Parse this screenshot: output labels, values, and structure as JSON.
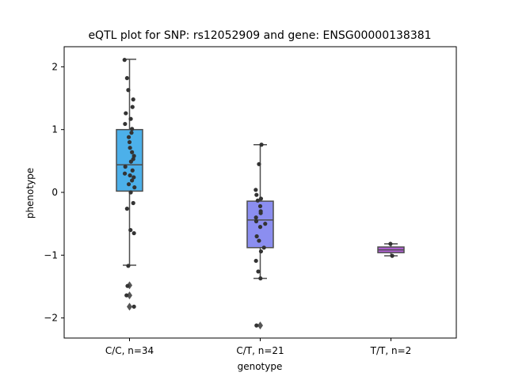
{
  "chart_data": {
    "type": "box",
    "title": "eQTL plot for SNP: rs12052909 and gene: ENSG00000138381",
    "xlabel": "genotype",
    "ylabel": "phenotype",
    "ylim": [
      -2.32,
      2.32
    ],
    "yticks": [
      -2,
      -1,
      0,
      1,
      2
    ],
    "yticklabels": [
      "−2",
      "−1",
      "0",
      "1",
      "2"
    ],
    "grid": false,
    "legend": "none",
    "colors": {
      "box_line": "#4d4d4d",
      "points": "#333333",
      "outliers": "#555555",
      "axes": "#000000"
    },
    "categories": [
      "C/C, n=34",
      "C/T, n=21",
      "T/T, n=2"
    ],
    "boxes": [
      {
        "category": "C/C, n=34",
        "color": "#4cb0ea",
        "q1": 0.02,
        "median": 0.44,
        "q3": 1.0,
        "whisker_low": -1.16,
        "whisker_high": 2.12,
        "outliers": [
          -1.48,
          -1.64,
          -1.82
        ],
        "points": [
          [
            -0.2,
            2.11
          ],
          [
            -0.1,
            1.82
          ],
          [
            -0.05,
            1.63
          ],
          [
            0.15,
            1.48
          ],
          [
            0.12,
            1.36
          ],
          [
            -0.15,
            1.26
          ],
          [
            0.05,
            1.17
          ],
          [
            -0.18,
            1.09
          ],
          [
            0.1,
            1.01
          ],
          [
            0.08,
            0.95
          ],
          [
            -0.03,
            0.88
          ],
          [
            0.0,
            0.8
          ],
          [
            0.02,
            0.71
          ],
          [
            0.1,
            0.64
          ],
          [
            0.18,
            0.58
          ],
          [
            0.15,
            0.53
          ],
          [
            0.06,
            0.49
          ],
          [
            -0.17,
            0.41
          ],
          [
            0.12,
            0.35
          ],
          [
            -0.19,
            0.3
          ],
          [
            0.02,
            0.27
          ],
          [
            0.17,
            0.24
          ],
          [
            0.1,
            0.19
          ],
          [
            -0.03,
            0.13
          ],
          [
            0.2,
            0.08
          ],
          [
            0.05,
            0.0
          ],
          [
            0.15,
            -0.17
          ],
          [
            -0.1,
            -0.26
          ],
          [
            0.04,
            -0.6
          ],
          [
            0.18,
            -0.65
          ],
          [
            -0.05,
            -1.17
          ],
          [
            -0.08,
            -1.49
          ],
          [
            -0.12,
            -1.64
          ],
          [
            0.18,
            -1.82
          ]
        ]
      },
      {
        "category": "C/T, n=21",
        "color": "#8b8ef0",
        "q1": -0.88,
        "median": -0.44,
        "q3": -0.14,
        "whisker_low": -1.37,
        "whisker_high": 0.76,
        "outliers": [
          -2.12
        ],
        "points": [
          [
            0.05,
            0.76
          ],
          [
            -0.05,
            0.45
          ],
          [
            -0.18,
            0.04
          ],
          [
            -0.15,
            -0.04
          ],
          [
            -0.1,
            -0.13
          ],
          [
            0.03,
            -0.1
          ],
          [
            0.0,
            -0.22
          ],
          [
            0.02,
            -0.3
          ],
          [
            -0.17,
            -0.4
          ],
          [
            -0.16,
            -0.46
          ],
          [
            0.2,
            -0.5
          ],
          [
            0.0,
            -0.55
          ],
          [
            -0.14,
            -0.7
          ],
          [
            -0.05,
            -0.77
          ],
          [
            0.15,
            -0.88
          ],
          [
            0.03,
            -0.94
          ],
          [
            -0.17,
            -1.09
          ],
          [
            -0.08,
            -1.26
          ],
          [
            0.01,
            -1.37
          ],
          [
            -0.15,
            -2.12
          ],
          [
            0.02,
            -0.33
          ]
        ]
      },
      {
        "category": "T/T, n=2",
        "color": "#b05fd4",
        "q1": -0.96,
        "median": -0.915,
        "q3": -0.87,
        "whisker_low": -1.01,
        "whisker_high": -0.82,
        "outliers": [],
        "points": [
          [
            -0.02,
            -0.82
          ],
          [
            0.05,
            -1.01
          ]
        ]
      }
    ]
  }
}
